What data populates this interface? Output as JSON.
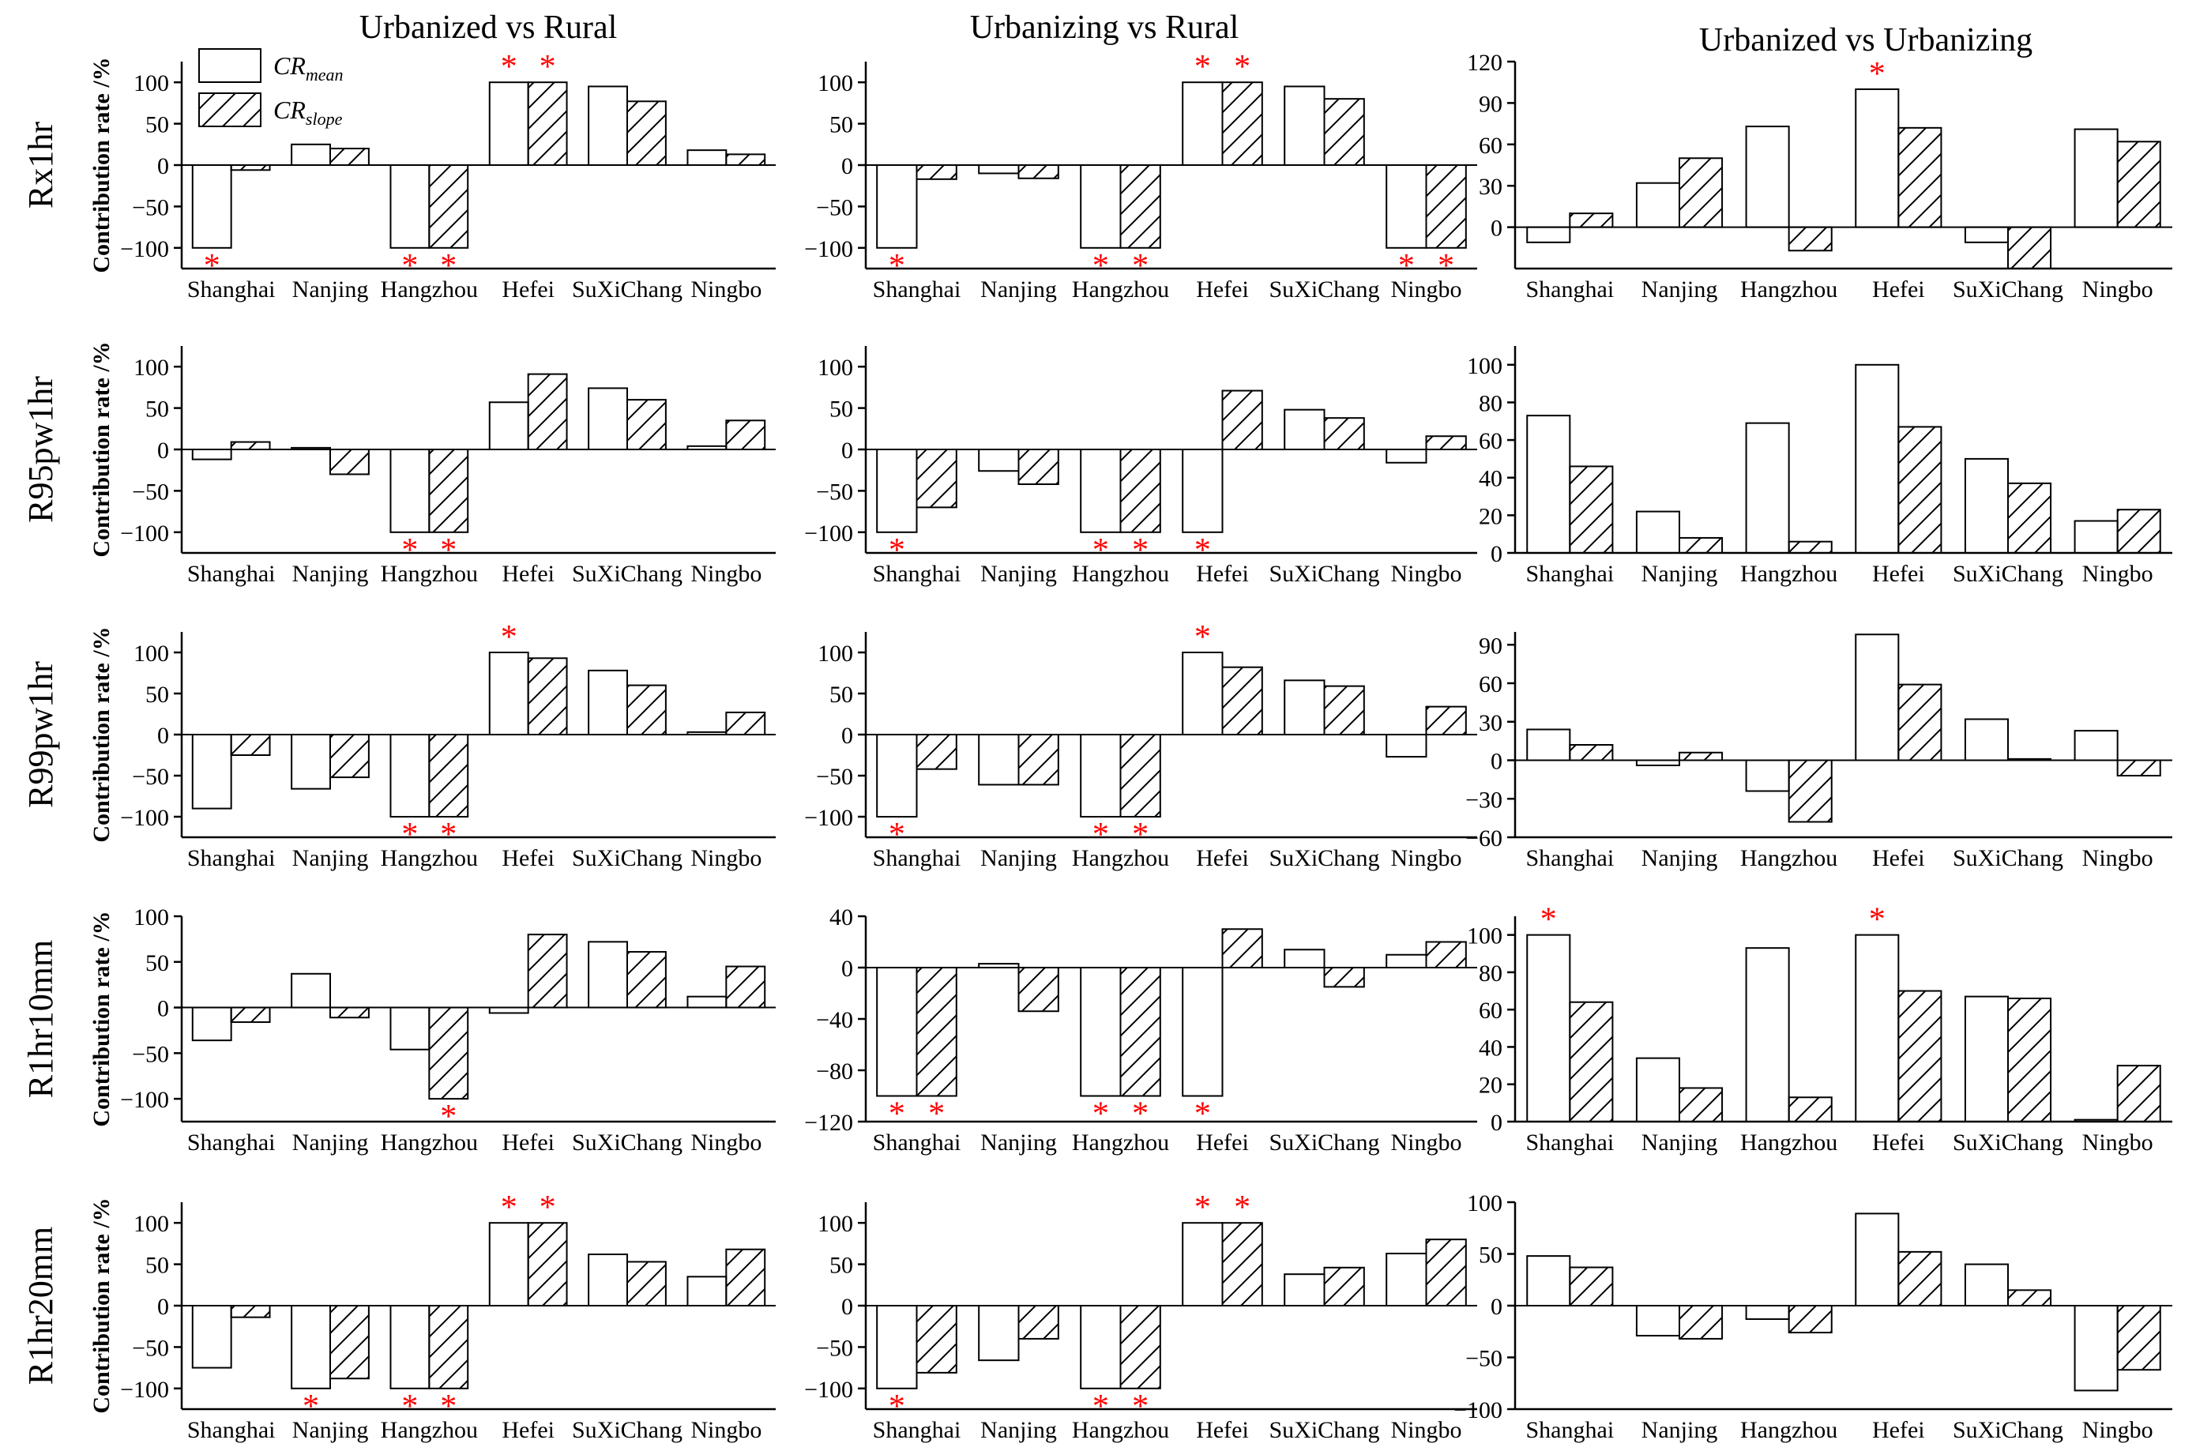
{
  "colors": {
    "bar_fill": "#ffffff",
    "stroke": "#000000",
    "star": "#ff0000"
  },
  "column_titles": [
    "Urbanized vs Rural",
    "Urbanizing vs Rural",
    "Urbanized vs Urbanizing"
  ],
  "row_labels": [
    "Rx1hr",
    "R95pw1hr",
    "R99pw1hr",
    "R1hr10mm",
    "R1hr20mm"
  ],
  "y_axis_label": "Contribution rate /%",
  "legend": {
    "placement": "top-left of first panel",
    "items": [
      {
        "symbol": "CR",
        "subscript": "mean",
        "pattern": "empty"
      },
      {
        "symbol": "CR",
        "subscript": "slope",
        "pattern": "hatched"
      }
    ]
  },
  "significance_marker": "*",
  "chart_data": [
    {
      "type": "bar",
      "row": "Rx1hr",
      "column": "Urbanized vs Rural",
      "categories": [
        "Shanghai",
        "Nanjing",
        "Hangzhou",
        "Hefei",
        "SuXiChang",
        "Ningbo"
      ],
      "ylim": [
        -125,
        125
      ],
      "yticks": [
        -100,
        -50,
        0,
        50,
        100
      ],
      "series": [
        {
          "name": "CR_mean",
          "values": [
            -100,
            25,
            -100,
            100,
            95,
            18
          ]
        },
        {
          "name": "CR_slope",
          "values": [
            -6,
            20,
            -100,
            100,
            77,
            13
          ]
        }
      ],
      "significant": [
        {
          "series": "CR_mean",
          "categories": [
            "Shanghai",
            "Hangzhou",
            "Hefei"
          ]
        },
        {
          "series": "CR_slope",
          "categories": [
            "Hangzhou",
            "Hefei"
          ]
        }
      ]
    },
    {
      "type": "bar",
      "row": "Rx1hr",
      "column": "Urbanizing vs Rural",
      "categories": [
        "Shanghai",
        "Nanjing",
        "Hangzhou",
        "Hefei",
        "SuXiChang",
        "Ningbo"
      ],
      "ylim": [
        -125,
        125
      ],
      "yticks": [
        -100,
        -50,
        0,
        50,
        100
      ],
      "series": [
        {
          "name": "CR_mean",
          "values": [
            -100,
            -10,
            -100,
            100,
            95,
            -100
          ]
        },
        {
          "name": "CR_slope",
          "values": [
            -17,
            -16,
            -100,
            100,
            80,
            -100
          ]
        }
      ],
      "significant": [
        {
          "series": "CR_mean",
          "categories": [
            "Shanghai",
            "Hangzhou",
            "Hefei",
            "Ningbo"
          ]
        },
        {
          "series": "CR_slope",
          "categories": [
            "Hangzhou",
            "Hefei",
            "Ningbo"
          ]
        }
      ]
    },
    {
      "type": "bar",
      "row": "Rx1hr",
      "column": "Urbanized vs Urbanizing",
      "categories": [
        "Shanghai",
        "Nanjing",
        "Hangzhou",
        "Hefei",
        "SuXiChang",
        "Ningbo"
      ],
      "ylim": [
        -30,
        120
      ],
      "yticks": [
        0,
        30,
        60,
        90,
        120
      ],
      "series": [
        {
          "name": "CR_mean",
          "values": [
            -11,
            32,
            73,
            100,
            -11,
            71
          ]
        },
        {
          "name": "CR_slope",
          "values": [
            10,
            50,
            -17,
            72,
            -30,
            62
          ]
        }
      ],
      "significant": [
        {
          "series": "CR_mean",
          "categories": [
            "Hefei"
          ]
        }
      ]
    },
    {
      "type": "bar",
      "row": "R95pw1hr",
      "column": "Urbanized vs Rural",
      "categories": [
        "Shanghai",
        "Nanjing",
        "Hangzhou",
        "Hefei",
        "SuXiChang",
        "Ningbo"
      ],
      "ylim": [
        -125,
        125
      ],
      "yticks": [
        -100,
        -50,
        0,
        50,
        100
      ],
      "series": [
        {
          "name": "CR_mean",
          "values": [
            -12,
            2,
            -100,
            57,
            74,
            4
          ]
        },
        {
          "name": "CR_slope",
          "values": [
            9,
            -30,
            -100,
            91,
            60,
            35
          ]
        }
      ],
      "significant": [
        {
          "series": "CR_mean",
          "categories": [
            "Hangzhou"
          ]
        },
        {
          "series": "CR_slope",
          "categories": [
            "Hangzhou"
          ]
        }
      ]
    },
    {
      "type": "bar",
      "row": "R95pw1hr",
      "column": "Urbanizing vs Rural",
      "categories": [
        "Shanghai",
        "Nanjing",
        "Hangzhou",
        "Hefei",
        "SuXiChang",
        "Ningbo"
      ],
      "ylim": [
        -125,
        125
      ],
      "yticks": [
        -100,
        -50,
        0,
        50,
        100
      ],
      "series": [
        {
          "name": "CR_mean",
          "values": [
            -100,
            -26,
            -100,
            -100,
            48,
            -16
          ]
        },
        {
          "name": "CR_slope",
          "values": [
            -70,
            -42,
            -100,
            71,
            38,
            16
          ]
        }
      ],
      "significant": [
        {
          "series": "CR_mean",
          "categories": [
            "Shanghai",
            "Hangzhou",
            "Hefei"
          ]
        },
        {
          "series": "CR_slope",
          "categories": [
            "Hangzhou"
          ]
        }
      ]
    },
    {
      "type": "bar",
      "row": "R95pw1hr",
      "column": "Urbanized vs Urbanizing",
      "categories": [
        "Shanghai",
        "Nanjing",
        "Hangzhou",
        "Hefei",
        "SuXiChang",
        "Ningbo"
      ],
      "ylim": [
        0,
        110
      ],
      "yticks": [
        0,
        20,
        40,
        60,
        80,
        100
      ],
      "series": [
        {
          "name": "CR_mean",
          "values": [
            73,
            22,
            69,
            100,
            50,
            17
          ]
        },
        {
          "name": "CR_slope",
          "values": [
            46,
            8,
            6,
            67,
            37,
            23
          ]
        }
      ],
      "significant": []
    },
    {
      "type": "bar",
      "row": "R99pw1hr",
      "column": "Urbanized vs Rural",
      "categories": [
        "Shanghai",
        "Nanjing",
        "Hangzhou",
        "Hefei",
        "SuXiChang",
        "Ningbo"
      ],
      "ylim": [
        -125,
        125
      ],
      "yticks": [
        -100,
        -50,
        0,
        50,
        100
      ],
      "series": [
        {
          "name": "CR_mean",
          "values": [
            -90,
            -66,
            -100,
            100,
            78,
            3
          ]
        },
        {
          "name": "CR_slope",
          "values": [
            -25,
            -52,
            -100,
            93,
            60,
            27
          ]
        }
      ],
      "significant": [
        {
          "series": "CR_mean",
          "categories": [
            "Hangzhou",
            "Hefei"
          ]
        },
        {
          "series": "CR_slope",
          "categories": [
            "Hangzhou"
          ]
        }
      ]
    },
    {
      "type": "bar",
      "row": "R99pw1hr",
      "column": "Urbanizing vs Rural",
      "categories": [
        "Shanghai",
        "Nanjing",
        "Hangzhou",
        "Hefei",
        "SuXiChang",
        "Ningbo"
      ],
      "ylim": [
        -125,
        125
      ],
      "yticks": [
        -100,
        -50,
        0,
        50,
        100
      ],
      "series": [
        {
          "name": "CR_mean",
          "values": [
            -100,
            -61,
            -100,
            100,
            66,
            -27
          ]
        },
        {
          "name": "CR_slope",
          "values": [
            -42,
            -61,
            -100,
            82,
            59,
            34
          ]
        }
      ],
      "significant": [
        {
          "series": "CR_mean",
          "categories": [
            "Shanghai",
            "Hangzhou",
            "Hefei"
          ]
        },
        {
          "series": "CR_slope",
          "categories": [
            "Hangzhou"
          ]
        }
      ]
    },
    {
      "type": "bar",
      "row": "R99pw1hr",
      "column": "Urbanized vs Urbanizing",
      "categories": [
        "Shanghai",
        "Nanjing",
        "Hangzhou",
        "Hefei",
        "SuXiChang",
        "Ningbo"
      ],
      "ylim": [
        -60,
        100
      ],
      "yticks": [
        -60,
        -30,
        0,
        30,
        60,
        90
      ],
      "series": [
        {
          "name": "CR_mean",
          "values": [
            24,
            -4,
            -24,
            98,
            32,
            23
          ]
        },
        {
          "name": "CR_slope",
          "values": [
            12,
            6,
            -48,
            59,
            1,
            -12
          ]
        }
      ],
      "significant": []
    },
    {
      "type": "bar",
      "row": "R1hr10mm",
      "column": "Urbanized vs Rural",
      "categories": [
        "Shanghai",
        "Nanjing",
        "Hangzhou",
        "Hefei",
        "SuXiChang",
        "Ningbo"
      ],
      "ylim": [
        -125,
        100
      ],
      "yticks": [
        -100,
        -50,
        0,
        50,
        100
      ],
      "series": [
        {
          "name": "CR_mean",
          "values": [
            -36,
            37,
            -46,
            -6,
            72,
            12
          ]
        },
        {
          "name": "CR_slope",
          "values": [
            -16,
            -11,
            -100,
            80,
            61,
            45
          ]
        }
      ],
      "significant": [
        {
          "series": "CR_slope",
          "categories": [
            "Hangzhou"
          ]
        }
      ]
    },
    {
      "type": "bar",
      "row": "R1hr10mm",
      "column": "Urbanizing vs Rural",
      "categories": [
        "Shanghai",
        "Nanjing",
        "Hangzhou",
        "Hefei",
        "SuXiChang",
        "Ningbo"
      ],
      "ylim": [
        -120,
        40
      ],
      "yticks": [
        -120,
        -80,
        -40,
        0,
        40
      ],
      "series": [
        {
          "name": "CR_mean",
          "values": [
            -100,
            3,
            -100,
            -100,
            14,
            10
          ]
        },
        {
          "name": "CR_slope",
          "values": [
            -100,
            -34,
            -100,
            30,
            -15,
            20
          ]
        }
      ],
      "significant": [
        {
          "series": "CR_mean",
          "categories": [
            "Shanghai",
            "Hangzhou",
            "Hefei"
          ]
        },
        {
          "series": "CR_slope",
          "categories": [
            "Shanghai",
            "Hangzhou"
          ]
        }
      ]
    },
    {
      "type": "bar",
      "row": "R1hr10mm",
      "column": "Urbanized vs Urbanizing",
      "categories": [
        "Shanghai",
        "Nanjing",
        "Hangzhou",
        "Hefei",
        "SuXiChang",
        "Ningbo"
      ],
      "ylim": [
        0,
        110
      ],
      "yticks": [
        0,
        20,
        40,
        60,
        80,
        100
      ],
      "series": [
        {
          "name": "CR_mean",
          "values": [
            100,
            34,
            93,
            100,
            67,
            1
          ]
        },
        {
          "name": "CR_slope",
          "values": [
            64,
            18,
            13,
            70,
            66,
            30
          ]
        }
      ],
      "significant": [
        {
          "series": "CR_mean",
          "categories": [
            "Shanghai",
            "Hefei"
          ]
        }
      ]
    },
    {
      "type": "bar",
      "row": "R1hr20mm",
      "column": "Urbanized vs Rural",
      "categories": [
        "Shanghai",
        "Nanjing",
        "Hangzhou",
        "Hefei",
        "SuXiChang",
        "Ningbo"
      ],
      "ylim": [
        -125,
        125
      ],
      "yticks": [
        -100,
        -50,
        0,
        50,
        100
      ],
      "series": [
        {
          "name": "CR_mean",
          "values": [
            -75,
            -100,
            -100,
            100,
            62,
            35
          ]
        },
        {
          "name": "CR_slope",
          "values": [
            -14,
            -88,
            -100,
            100,
            53,
            68
          ]
        }
      ],
      "significant": [
        {
          "series": "CR_mean",
          "categories": [
            "Nanjing",
            "Hangzhou",
            "Hefei"
          ]
        },
        {
          "series": "CR_slope",
          "categories": [
            "Hangzhou",
            "Hefei"
          ]
        }
      ]
    },
    {
      "type": "bar",
      "row": "R1hr20mm",
      "column": "Urbanizing vs Rural",
      "categories": [
        "Shanghai",
        "Nanjing",
        "Hangzhou",
        "Hefei",
        "SuXiChang",
        "Ningbo"
      ],
      "ylim": [
        -125,
        125
      ],
      "yticks": [
        -100,
        -50,
        0,
        50,
        100
      ],
      "series": [
        {
          "name": "CR_mean",
          "values": [
            -100,
            -66,
            -100,
            100,
            38,
            63
          ]
        },
        {
          "name": "CR_slope",
          "values": [
            -81,
            -40,
            -100,
            100,
            46,
            80
          ]
        }
      ],
      "significant": [
        {
          "series": "CR_mean",
          "categories": [
            "Shanghai",
            "Hangzhou",
            "Hefei"
          ]
        },
        {
          "series": "CR_slope",
          "categories": [
            "Hangzhou",
            "Hefei"
          ]
        }
      ]
    },
    {
      "type": "bar",
      "row": "R1hr20mm",
      "column": "Urbanized vs Urbanizing",
      "categories": [
        "Shanghai",
        "Nanjing",
        "Hangzhou",
        "Hefei",
        "SuXiChang",
        "Ningbo"
      ],
      "ylim": [
        -100,
        100
      ],
      "yticks": [
        -100,
        -50,
        0,
        50,
        100
      ],
      "series": [
        {
          "name": "CR_mean",
          "values": [
            48,
            -29,
            -13,
            89,
            40,
            -82
          ]
        },
        {
          "name": "CR_slope",
          "values": [
            37,
            -32,
            -26,
            52,
            15,
            -62
          ]
        }
      ],
      "significant": []
    }
  ]
}
